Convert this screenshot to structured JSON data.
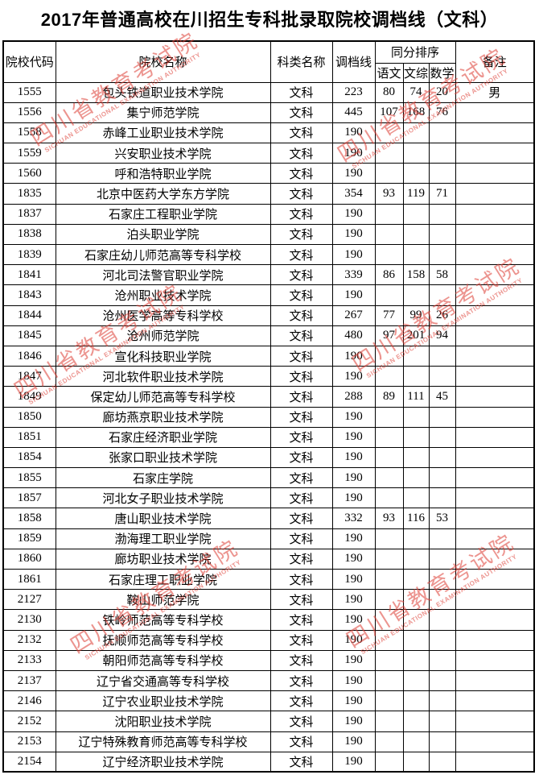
{
  "title": "2017年普通高校在川招生专科批录取院校调档线（文科）",
  "table": {
    "headers": {
      "code": "院校代码",
      "name": "院校名称",
      "category": "科类名称",
      "score_line": "调档线",
      "tiebreak_group": "同分排序",
      "chinese": "语文",
      "comprehensive": "文综",
      "math": "数学",
      "remark": "备注"
    },
    "rows": [
      [
        "1555",
        "包头铁道职业技术学院",
        "文科",
        "223",
        "80",
        "74",
        "20",
        "男"
      ],
      [
        "1556",
        "集宁师范学院",
        "文科",
        "445",
        "107",
        "168",
        "76",
        ""
      ],
      [
        "1558",
        "赤峰工业职业技术学院",
        "文科",
        "190",
        "",
        "",
        "",
        ""
      ],
      [
        "1559",
        "兴安职业技术学院",
        "文科",
        "190",
        "",
        "",
        "",
        ""
      ],
      [
        "1560",
        "呼和浩特职业学院",
        "文科",
        "190",
        "",
        "",
        "",
        ""
      ],
      [
        "1835",
        "北京中医药大学东方学院",
        "文科",
        "354",
        "93",
        "119",
        "71",
        ""
      ],
      [
        "1837",
        "石家庄工程职业学院",
        "文科",
        "190",
        "",
        "",
        "",
        ""
      ],
      [
        "1838",
        "泊头职业学院",
        "文科",
        "190",
        "",
        "",
        "",
        ""
      ],
      [
        "1839",
        "石家庄幼儿师范高等专科学校",
        "文科",
        "190",
        "",
        "",
        "",
        ""
      ],
      [
        "1841",
        "河北司法警官职业学院",
        "文科",
        "339",
        "86",
        "158",
        "58",
        ""
      ],
      [
        "1843",
        "沧州职业技术学院",
        "文科",
        "190",
        "",
        "",
        "",
        ""
      ],
      [
        "1844",
        "沧州医学高等专科学校",
        "文科",
        "267",
        "77",
        "99",
        "26",
        ""
      ],
      [
        "1845",
        "沧州师范学院",
        "文科",
        "480",
        "97",
        "201",
        "94",
        ""
      ],
      [
        "1846",
        "宣化科技职业学院",
        "文科",
        "190",
        "",
        "",
        "",
        ""
      ],
      [
        "1847",
        "河北软件职业技术学院",
        "文科",
        "190",
        "",
        "",
        "",
        ""
      ],
      [
        "1849",
        "保定幼儿师范高等专科学校",
        "文科",
        "288",
        "89",
        "111",
        "45",
        ""
      ],
      [
        "1850",
        "廊坊燕京职业技术学院",
        "文科",
        "190",
        "",
        "",
        "",
        ""
      ],
      [
        "1851",
        "石家庄经济职业学院",
        "文科",
        "190",
        "",
        "",
        "",
        ""
      ],
      [
        "1854",
        "张家口职业技术学院",
        "文科",
        "190",
        "",
        "",
        "",
        ""
      ],
      [
        "1855",
        "石家庄学院",
        "文科",
        "190",
        "",
        "",
        "",
        ""
      ],
      [
        "1857",
        "河北女子职业技术学院",
        "文科",
        "190",
        "",
        "",
        "",
        ""
      ],
      [
        "1858",
        "唐山职业技术学院",
        "文科",
        "332",
        "93",
        "116",
        "53",
        ""
      ],
      [
        "1859",
        "渤海理工职业学院",
        "文科",
        "190",
        "",
        "",
        "",
        ""
      ],
      [
        "1860",
        "廊坊职业技术学院",
        "文科",
        "190",
        "",
        "",
        "",
        ""
      ],
      [
        "1861",
        "石家庄理工职业学院",
        "文科",
        "190",
        "",
        "",
        "",
        ""
      ],
      [
        "2127",
        "鞍山师范学院",
        "文科",
        "190",
        "",
        "",
        "",
        ""
      ],
      [
        "2130",
        "铁岭师范高等专科学校",
        "文科",
        "190",
        "",
        "",
        "",
        ""
      ],
      [
        "2132",
        "抚顺师范高等专科学校",
        "文科",
        "190",
        "",
        "",
        "",
        ""
      ],
      [
        "2133",
        "朝阳师范高等专科学校",
        "文科",
        "190",
        "",
        "",
        "",
        ""
      ],
      [
        "2137",
        "辽宁省交通高等专科学校",
        "文科",
        "190",
        "",
        "",
        "",
        ""
      ],
      [
        "2146",
        "辽宁农业职业技术学院",
        "文科",
        "190",
        "",
        "",
        "",
        ""
      ],
      [
        "2152",
        "沈阳职业技术学院",
        "文科",
        "190",
        "",
        "",
        "",
        ""
      ],
      [
        "2153",
        "辽宁特殊教育师范高等专科学校",
        "文科",
        "190",
        "",
        "",
        "",
        ""
      ],
      [
        "2154",
        "辽宁经济职业技术学院",
        "文科",
        "190",
        "",
        "",
        "",
        ""
      ]
    ]
  },
  "watermark": {
    "text_cn": "四川省教育考试院",
    "text_en": "SICHUAN EDUCATIONAL EXAMINATION AUTHORITY",
    "color": "#dd3e34"
  }
}
